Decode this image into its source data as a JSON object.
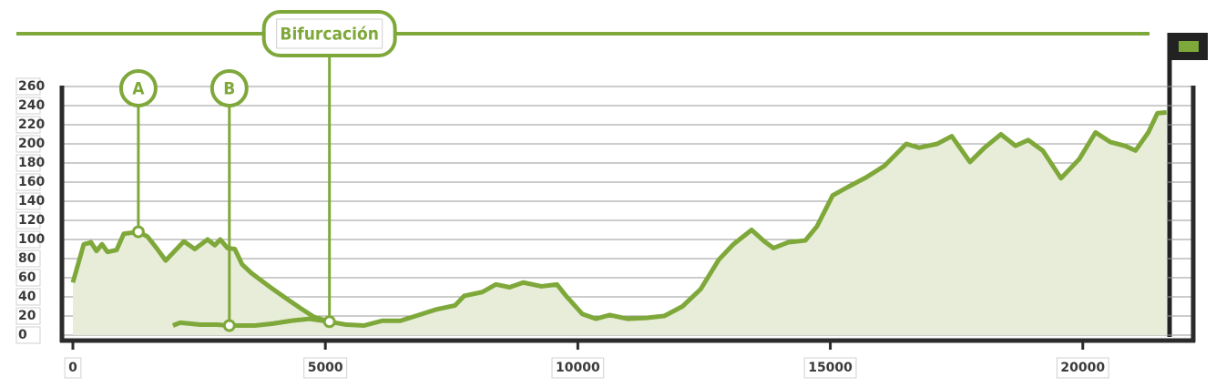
{
  "chart_data": {
    "type": "area",
    "color": "#7fa83a",
    "fill": "#e7edd8",
    "xlim": [
      0,
      21700
    ],
    "ylim": [
      0,
      260
    ],
    "xticks": [
      0,
      5000,
      10000,
      15000,
      20000
    ],
    "yticks": [
      0,
      20,
      40,
      60,
      80,
      100,
      120,
      140,
      160,
      180,
      200,
      220,
      240,
      260
    ],
    "grid": true,
    "series": [
      {
        "x": [
          0,
          216,
          360,
          468,
          577,
          685,
          865,
          1009,
          1297,
          1477,
          1658,
          1838,
          1982,
          2198,
          2414,
          2667,
          2811,
          2919,
          3063,
          3207,
          3351,
          3532,
          3784,
          3964,
          4288,
          4541,
          4775,
          5081,
          5405,
          5766,
          6126,
          6486,
          6847,
          7207,
          7568,
          7748,
          8108,
          8378,
          8649,
          8919,
          9279,
          9586,
          9766,
          10090,
          10360,
          10631,
          10991,
          11351,
          11712,
          12072,
          12432,
          12793,
          13081,
          13441,
          13694,
          13874,
          14162,
          14505,
          14739,
          15045,
          15351,
          15712,
          16072,
          16505,
          16757,
          17117,
          17405,
          17766,
          18054,
          18378,
          18667,
          18919,
          19207,
          19568,
          19928,
          20252,
          20541,
          20829,
          21045,
          21297,
          21477,
          21658
        ],
        "values": [
          55,
          95,
          97,
          88,
          95,
          87,
          89,
          106,
          108,
          103,
          91,
          78,
          86,
          98,
          90,
          100,
          94,
          100,
          91,
          90,
          74,
          65,
          55,
          48,
          36,
          27,
          19,
          14,
          11,
          10,
          15,
          15,
          21,
          27,
          31,
          41,
          45,
          53,
          50,
          55,
          51,
          53,
          41,
          22,
          17,
          21,
          17,
          18,
          20,
          30,
          48,
          79,
          95,
          110,
          98,
          91,
          97,
          99,
          114,
          146,
          155,
          165,
          177,
          200,
          196,
          200,
          208,
          181,
          196,
          210,
          198,
          204,
          193,
          164,
          184,
          212,
          202,
          198,
          193,
          212,
          232,
          233
        ]
      },
      {
        "x": [
          1982,
          2126,
          2523,
          2847,
          3099,
          3604,
          3964,
          4324,
          4685,
          5081
        ],
        "values": [
          10,
          13,
          11,
          11,
          10,
          10,
          12,
          15,
          17,
          14
        ]
      }
    ],
    "annotations": [
      {
        "label": "A",
        "x": 1297,
        "y": 108
      },
      {
        "label": "B",
        "x": 3099,
        "y": 10
      },
      {
        "label": "Bifurcación",
        "x": 5081,
        "y": 14
      }
    ]
  }
}
